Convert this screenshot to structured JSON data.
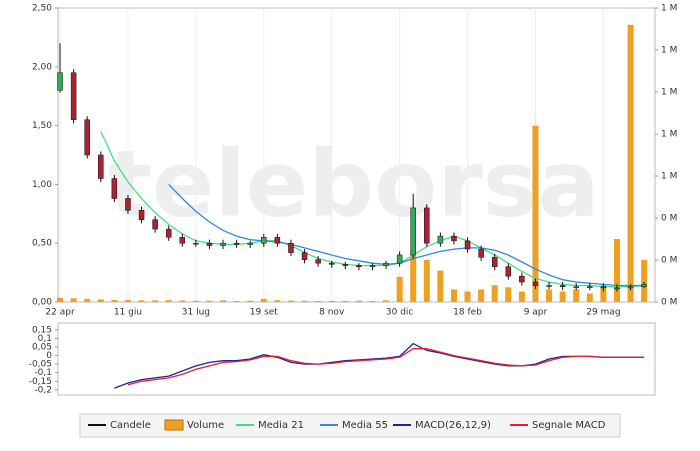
{
  "watermark": "teleborsa",
  "chart_data": [
    {
      "type": "candlestick",
      "x": [
        0,
        10,
        20,
        30,
        40,
        50,
        60,
        70,
        80,
        90,
        100,
        110,
        120,
        130,
        140,
        150,
        160,
        170,
        180,
        190,
        200,
        210,
        220,
        230,
        240,
        250,
        260,
        270,
        280,
        290,
        300,
        310,
        320,
        330,
        340,
        350,
        360,
        370,
        380,
        390,
        400,
        410,
        420,
        430
      ],
      "xlim": [
        -1.5,
        438
      ],
      "xticks": [
        {
          "value": 0,
          "label": "22 apr"
        },
        {
          "value": 50,
          "label": "11 giu"
        },
        {
          "value": 100,
          "label": "31 lug"
        },
        {
          "value": 150,
          "label": "19 set"
        },
        {
          "value": 200,
          "label": "8 nov"
        },
        {
          "value": 250,
          "label": "30 dic"
        },
        {
          "value": 300,
          "label": "18 feb"
        },
        {
          "value": 350,
          "label": "9 apr"
        },
        {
          "value": 400,
          "label": "29 mag"
        }
      ],
      "ylim": [
        0,
        2.5
      ],
      "yticks": [
        {
          "value": 0,
          "label": "0,00"
        },
        {
          "value": 0.5,
          "label": "0,50"
        },
        {
          "value": 1,
          "label": "1,00"
        },
        {
          "value": 1.5,
          "label": "1,50"
        },
        {
          "value": 2,
          "label": "2,00"
        },
        {
          "value": 2.5,
          "label": "2,50"
        }
      ],
      "y2lim": [
        0,
        1400000
      ],
      "y2ticks": [
        {
          "value": 0,
          "label": "0 M"
        },
        {
          "value": 200000,
          "label": "0 M"
        },
        {
          "value": 400000,
          "label": "0 M"
        },
        {
          "value": 600000,
          "label": "1 M"
        },
        {
          "value": 800000,
          "label": "1 M"
        },
        {
          "value": 1000000,
          "label": "1 M"
        },
        {
          "value": 1200000,
          "label": "1 M"
        },
        {
          "value": 1400000,
          "label": "1 M"
        }
      ],
      "grid": true,
      "series": [
        {
          "name": "Candele",
          "type": "candlestick",
          "color": "#111111",
          "up_color": "#33aa55",
          "down_color": "#aa2233",
          "open": [
            1.8,
            1.95,
            1.55,
            1.25,
            1.05,
            0.88,
            0.78,
            0.7,
            0.62,
            0.55,
            0.5,
            0.5,
            0.48,
            0.5,
            0.49,
            0.5,
            0.55,
            0.5,
            0.42,
            0.36,
            0.33,
            0.32,
            0.31,
            0.3,
            0.31,
            0.33,
            0.4,
            0.8,
            0.5,
            0.56,
            0.52,
            0.45,
            0.38,
            0.3,
            0.22,
            0.17,
            0.14,
            0.14,
            0.13,
            0.13,
            0.13,
            0.12,
            0.12,
            0.13
          ],
          "high": [
            2.2,
            1.98,
            1.58,
            1.28,
            1.08,
            0.91,
            0.81,
            0.73,
            0.65,
            0.58,
            0.53,
            0.53,
            0.53,
            0.53,
            0.52,
            0.58,
            0.58,
            0.53,
            0.45,
            0.39,
            0.35,
            0.34,
            0.33,
            0.33,
            0.35,
            0.43,
            0.92,
            0.83,
            0.59,
            0.59,
            0.55,
            0.48,
            0.41,
            0.33,
            0.25,
            0.2,
            0.17,
            0.17,
            0.16,
            0.16,
            0.16,
            0.15,
            0.15,
            0.17
          ],
          "low": [
            1.78,
            1.52,
            1.22,
            1.02,
            0.85,
            0.75,
            0.67,
            0.59,
            0.52,
            0.47,
            0.47,
            0.45,
            0.45,
            0.46,
            0.46,
            0.47,
            0.47,
            0.39,
            0.33,
            0.3,
            0.29,
            0.28,
            0.27,
            0.27,
            0.28,
            0.3,
            0.37,
            0.47,
            0.47,
            0.49,
            0.42,
            0.35,
            0.27,
            0.19,
            0.14,
            0.11,
            0.11,
            0.1,
            0.1,
            0.1,
            0.09,
            0.09,
            0.1,
            0.12
          ],
          "close": [
            1.95,
            1.55,
            1.25,
            1.05,
            0.88,
            0.78,
            0.7,
            0.62,
            0.55,
            0.5,
            0.5,
            0.48,
            0.5,
            0.49,
            0.5,
            0.55,
            0.5,
            0.42,
            0.36,
            0.33,
            0.32,
            0.31,
            0.3,
            0.31,
            0.33,
            0.4,
            0.8,
            0.5,
            0.56,
            0.52,
            0.45,
            0.38,
            0.3,
            0.22,
            0.17,
            0.14,
            0.14,
            0.13,
            0.13,
            0.13,
            0.12,
            0.12,
            0.13,
            0.15
          ]
        },
        {
          "name": "Volume",
          "type": "bar",
          "axis": "y2",
          "color": "#f0a020",
          "values": [
            20000,
            18000,
            15000,
            12000,
            10000,
            10000,
            8000,
            8000,
            9000,
            7000,
            6000,
            6000,
            8000,
            5000,
            6000,
            15000,
            9000,
            7000,
            6000,
            5000,
            5000,
            5000,
            6000,
            5000,
            8000,
            120000,
            250000,
            200000,
            150000,
            60000,
            50000,
            60000,
            80000,
            70000,
            50000,
            840000,
            60000,
            50000,
            60000,
            40000,
            80000,
            300000,
            1320000,
            200000
          ]
        },
        {
          "name": "Media 21",
          "type": "line",
          "color": "#44dd88",
          "values": [
            null,
            null,
            null,
            1.45,
            1.2,
            1.02,
            0.88,
            0.76,
            0.66,
            0.58,
            0.52,
            0.5,
            0.49,
            0.49,
            0.5,
            0.52,
            0.52,
            0.48,
            0.42,
            0.37,
            0.34,
            0.32,
            0.31,
            0.31,
            0.31,
            0.33,
            0.4,
            0.47,
            0.52,
            0.56,
            0.52,
            0.46,
            0.4,
            0.33,
            0.26,
            0.2,
            0.17,
            0.15,
            0.14,
            0.14,
            0.13,
            0.13,
            0.13,
            0.14
          ]
        },
        {
          "name": "Media 55",
          "type": "line",
          "color": "#3388dd",
          "values": [
            null,
            null,
            null,
            null,
            null,
            null,
            null,
            null,
            1.0,
            0.88,
            0.77,
            0.68,
            0.61,
            0.56,
            0.53,
            0.52,
            0.51,
            0.49,
            0.46,
            0.43,
            0.4,
            0.37,
            0.35,
            0.33,
            0.32,
            0.33,
            0.37,
            0.4,
            0.43,
            0.45,
            0.46,
            0.46,
            0.44,
            0.4,
            0.34,
            0.28,
            0.23,
            0.19,
            0.17,
            0.16,
            0.15,
            0.14,
            0.14,
            0.14
          ]
        }
      ]
    },
    {
      "type": "line",
      "x": [
        0,
        10,
        20,
        30,
        40,
        50,
        60,
        70,
        80,
        90,
        100,
        110,
        120,
        130,
        140,
        150,
        160,
        170,
        180,
        190,
        200,
        210,
        220,
        230,
        240,
        250,
        260,
        270,
        280,
        290,
        300,
        310,
        320,
        330,
        340,
        350,
        360,
        370,
        380,
        390,
        400,
        410,
        420,
        430
      ],
      "xlim": [
        -1.5,
        438
      ],
      "ylim": [
        -0.23,
        0.19
      ],
      "yticks": [
        {
          "value": 0.15,
          "label": "0,15"
        },
        {
          "value": 0.1,
          "label": "0,1"
        },
        {
          "value": 0.05,
          "label": "0,05"
        },
        0,
        {
          "value": -0.05,
          "label": "-0,05"
        },
        {
          "value": -0.1,
          "label": "-0,1"
        },
        {
          "value": -0.15,
          "label": "-0,15"
        },
        {
          "value": -0.2,
          "label": "-0,2"
        }
      ],
      "series": [
        {
          "name": "MACD(26,12,9)",
          "type": "line",
          "color": "#222299",
          "values": [
            null,
            null,
            null,
            null,
            -0.19,
            -0.16,
            -0.14,
            -0.13,
            -0.12,
            -0.09,
            -0.06,
            -0.04,
            -0.03,
            -0.03,
            -0.02,
            0.005,
            -0.01,
            -0.04,
            -0.05,
            -0.05,
            -0.04,
            -0.03,
            -0.025,
            -0.02,
            -0.015,
            -0.005,
            0.07,
            0.03,
            0.015,
            -0.005,
            -0.02,
            -0.035,
            -0.05,
            -0.06,
            -0.06,
            -0.05,
            -0.02,
            -0.005,
            -0.005,
            -0.005,
            -0.01,
            -0.01,
            -0.01,
            -0.01
          ]
        },
        {
          "name": "Segnale MACD",
          "type": "line",
          "color": "#dd2233",
          "values": [
            null,
            null,
            null,
            null,
            null,
            -0.17,
            -0.15,
            -0.14,
            -0.13,
            -0.11,
            -0.08,
            -0.06,
            -0.04,
            -0.035,
            -0.025,
            -0.005,
            -0.005,
            -0.03,
            -0.045,
            -0.05,
            -0.045,
            -0.035,
            -0.03,
            -0.025,
            -0.02,
            -0.01,
            0.04,
            0.04,
            0.02,
            0,
            -0.015,
            -0.03,
            -0.045,
            -0.055,
            -0.06,
            -0.055,
            -0.03,
            -0.01,
            -0.005,
            -0.005,
            -0.01,
            -0.01,
            -0.01,
            -0.01
          ]
        }
      ]
    }
  ]
}
